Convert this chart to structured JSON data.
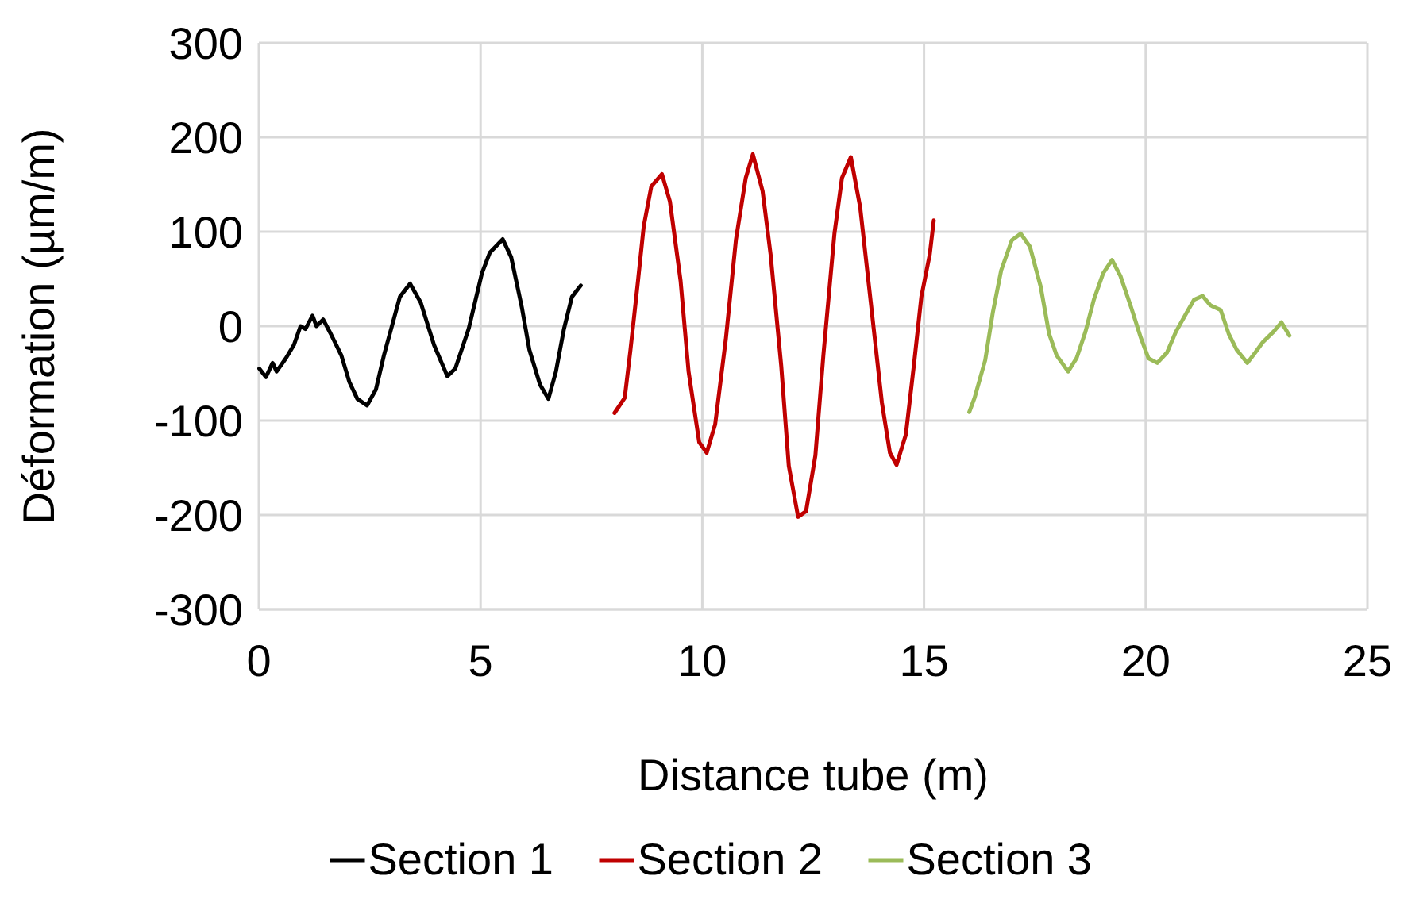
{
  "chart_data": {
    "type": "line",
    "xlabel": "Distance tube (m)",
    "ylabel": "Déformation (µm/m)",
    "xlim": [
      0,
      25
    ],
    "xticks": [
      0,
      5,
      10,
      15,
      20,
      25
    ],
    "ylim": [
      -300,
      300
    ],
    "yticks": [
      -300,
      -200,
      -100,
      0,
      100,
      200,
      300
    ],
    "grid": true,
    "legend": "bottom",
    "marker": "none",
    "line_style": "solid",
    "series": [
      {
        "name": "Section 1",
        "color": "#000000",
        "x": [
          0.01,
          0.16,
          0.31,
          0.4,
          0.61,
          0.79,
          0.94,
          1.05,
          1.21,
          1.3,
          1.45,
          1.62,
          1.86,
          2.04,
          2.22,
          2.44,
          2.64,
          2.82,
          3.18,
          3.41,
          3.65,
          3.95,
          4.25,
          4.43,
          4.73,
          5.03,
          5.21,
          5.5,
          5.69,
          5.93,
          6.1,
          6.34,
          6.53,
          6.7,
          6.88,
          7.06,
          7.26
        ],
        "values": [
          -45,
          -54,
          -39,
          -48,
          -34,
          -20,
          0,
          -3,
          11,
          0,
          7,
          -8,
          -31,
          -59,
          -77,
          -84,
          -67,
          -31,
          31,
          45,
          25,
          -20,
          -53,
          -45,
          -3,
          56,
          78,
          92,
          73,
          20,
          -25,
          -62,
          -77,
          -48,
          -3,
          31,
          43
        ]
      },
      {
        "name": "Section 2",
        "color": "#c00000",
        "x": [
          8.02,
          8.25,
          8.38,
          8.55,
          8.68,
          8.85,
          9.09,
          9.27,
          9.51,
          9.69,
          9.93,
          10.1,
          10.29,
          10.53,
          10.76,
          10.98,
          11.14,
          11.36,
          11.54,
          11.78,
          11.95,
          12.16,
          12.34,
          12.55,
          12.73,
          12.98,
          13.15,
          13.35,
          13.56,
          13.8,
          14.05,
          14.23,
          14.38,
          14.59,
          14.77,
          14.94,
          15.13,
          15.22
        ],
        "values": [
          -92,
          -76,
          -25,
          48,
          106,
          148,
          161,
          132,
          48,
          -48,
          -123,
          -134,
          -104,
          -14,
          92,
          157,
          182,
          143,
          76,
          -42,
          -148,
          -202,
          -196,
          -137,
          -31,
          98,
          157,
          179,
          126,
          25,
          -81,
          -134,
          -147,
          -115,
          -42,
          31,
          76,
          112
        ]
      },
      {
        "name": "Section 3",
        "color": "#9bbb59",
        "x": [
          16.02,
          16.14,
          16.38,
          16.55,
          16.74,
          16.98,
          17.18,
          17.39,
          17.63,
          17.82,
          17.99,
          18.25,
          18.44,
          18.64,
          18.83,
          19.04,
          19.24,
          19.43,
          19.67,
          19.88,
          20.06,
          20.26,
          20.48,
          20.68,
          20.92,
          21.09,
          21.28,
          21.46,
          21.69,
          21.87,
          22.05,
          22.29,
          22.47,
          22.64,
          22.88,
          23.06,
          23.24
        ],
        "values": [
          -91,
          -76,
          -36,
          14,
          59,
          91,
          98,
          84,
          42,
          -8,
          -31,
          -48,
          -34,
          -6,
          28,
          56,
          70,
          53,
          20,
          -11,
          -34,
          -39,
          -28,
          -6,
          14,
          28,
          32,
          22,
          17,
          -8,
          -25,
          -39,
          -28,
          -17,
          -6,
          4,
          -10
        ]
      }
    ]
  }
}
